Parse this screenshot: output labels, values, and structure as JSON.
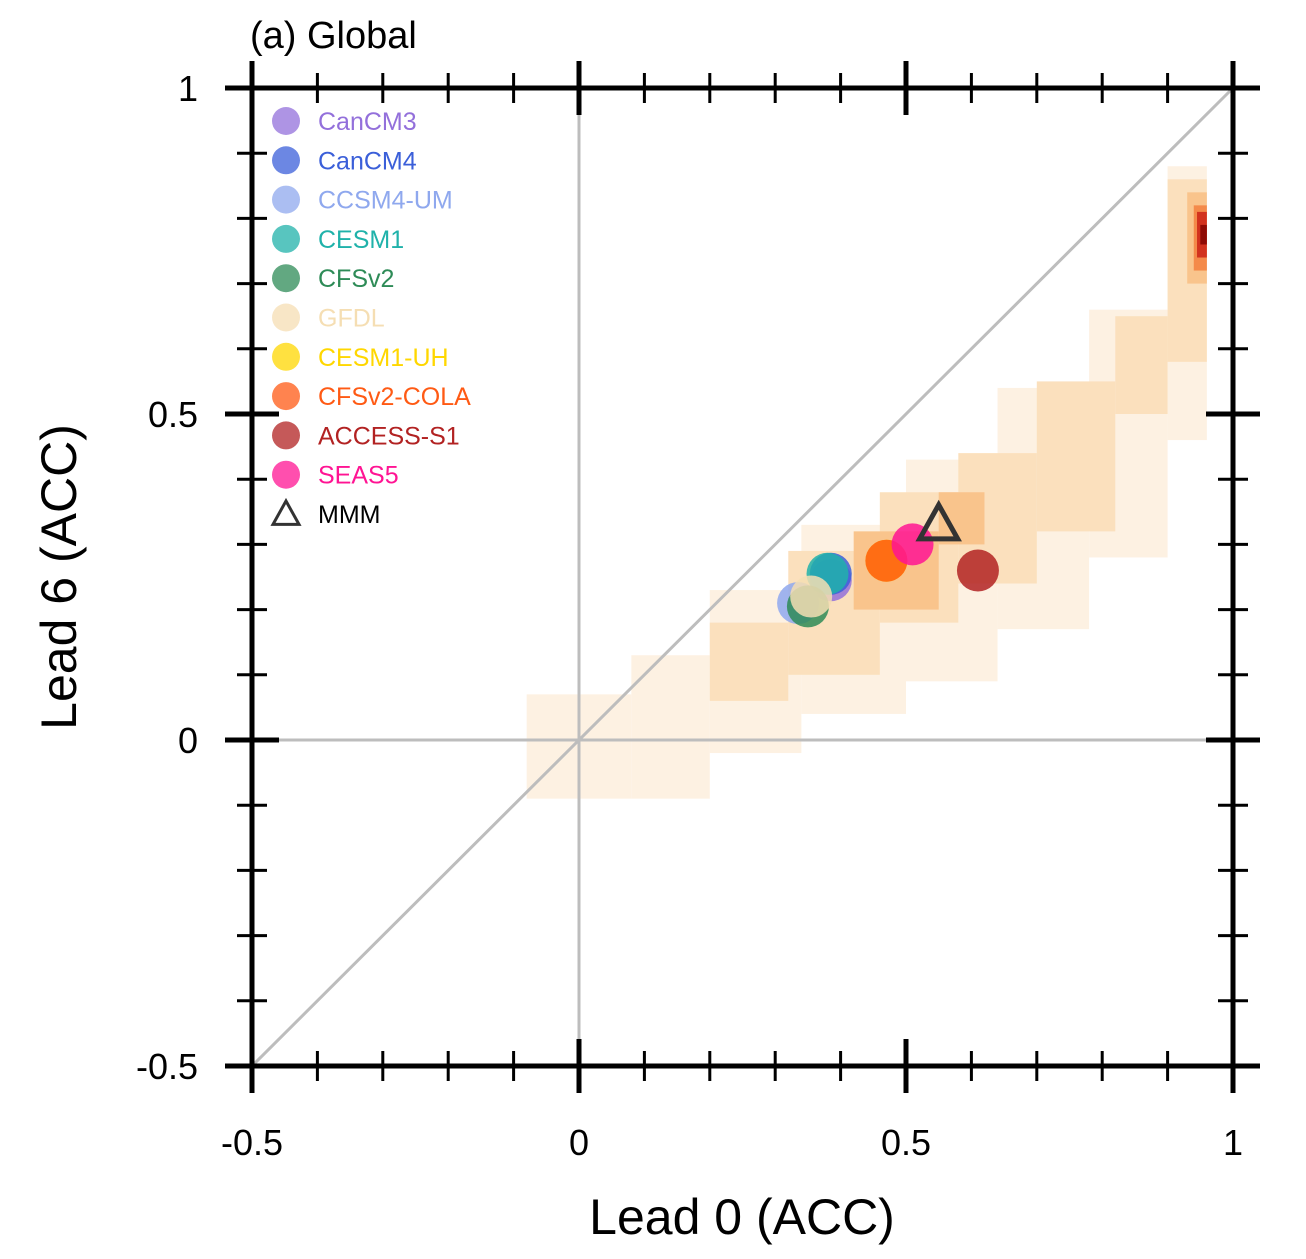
{
  "chart_data": {
    "type": "scatter",
    "title": "(a) Global",
    "xlabel": "Lead 0 (ACC)",
    "ylabel": "Lead 6 (ACC)",
    "xlim": [
      -0.5,
      1
    ],
    "ylim": [
      -0.5,
      1
    ],
    "x_ticks": [
      "-0.5",
      "0",
      "0.5",
      "1"
    ],
    "y_ticks": [
      "-0.5",
      "0",
      "0.5",
      "1"
    ],
    "reference_lines": [
      "x = 0",
      "y = 0",
      "y = x"
    ],
    "legend_position": "top-left",
    "series": [
      {
        "name": "CanCM3",
        "color": "#9370DB",
        "marker": "circle",
        "x": 0.385,
        "y": 0.245
      },
      {
        "name": "CanCM4",
        "color": "#3B5FD9",
        "marker": "circle",
        "x": 0.385,
        "y": 0.255
      },
      {
        "name": "CCSM4-UM",
        "color": "#8FA8EE",
        "marker": "circle",
        "x": 0.335,
        "y": 0.21
      },
      {
        "name": "CESM1",
        "color": "#20B2AA",
        "marker": "circle",
        "x": 0.38,
        "y": 0.255
      },
      {
        "name": "CFSv2",
        "color": "#2E8B57",
        "marker": "circle",
        "x": 0.35,
        "y": 0.205
      },
      {
        "name": "GFDL",
        "color": "#F5DEB3",
        "marker": "circle",
        "x": 0.355,
        "y": 0.22
      },
      {
        "name": "CESM1-UH",
        "color": "#FFD700",
        "marker": "circle",
        "x": 0.47,
        "y": 0.275
      },
      {
        "name": "CFSv2-COLA",
        "color": "#FF5A14",
        "marker": "circle",
        "x": 0.47,
        "y": 0.275
      },
      {
        "name": "ACCESS-S1",
        "color": "#B22222",
        "marker": "circle",
        "x": 0.61,
        "y": 0.26
      },
      {
        "name": "SEAS5",
        "color": "#FF1493",
        "marker": "circle",
        "x": 0.51,
        "y": 0.3
      },
      {
        "name": "MMM",
        "color": "#333333",
        "marker": "triangle",
        "x": 0.55,
        "y": 0.33
      }
    ],
    "density": {
      "description_colors": [
        "#fdf1e2",
        "#fbe0bd",
        "#f9c48c",
        "#f48a4a",
        "#d2321e",
        "#8f0b05"
      ],
      "bands": [
        {
          "x0": -0.08,
          "x1": 0.08,
          "ylo": -0.09,
          "yhi": 0.07,
          "level": 1
        },
        {
          "x0": 0.08,
          "x1": 0.2,
          "ylo": -0.09,
          "yhi": 0.13,
          "level": 1
        },
        {
          "x0": 0.2,
          "x1": 0.34,
          "ylo": -0.02,
          "yhi": 0.23,
          "level": 1
        },
        {
          "x0": 0.34,
          "x1": 0.5,
          "ylo": 0.04,
          "yhi": 0.33,
          "level": 1
        },
        {
          "x0": 0.5,
          "x1": 0.64,
          "ylo": 0.09,
          "yhi": 0.43,
          "level": 1
        },
        {
          "x0": 0.64,
          "x1": 0.78,
          "ylo": 0.17,
          "yhi": 0.54,
          "level": 1
        },
        {
          "x0": 0.78,
          "x1": 0.9,
          "ylo": 0.28,
          "yhi": 0.66,
          "level": 1
        },
        {
          "x0": 0.9,
          "x1": 0.96,
          "ylo": 0.46,
          "yhi": 0.88,
          "level": 1
        },
        {
          "x0": 0.2,
          "x1": 0.32,
          "ylo": 0.06,
          "yhi": 0.18,
          "level": 2
        },
        {
          "x0": 0.32,
          "x1": 0.46,
          "ylo": 0.1,
          "yhi": 0.29,
          "level": 2
        },
        {
          "x0": 0.46,
          "x1": 0.58,
          "ylo": 0.18,
          "yhi": 0.38,
          "level": 2
        },
        {
          "x0": 0.58,
          "x1": 0.7,
          "ylo": 0.24,
          "yhi": 0.44,
          "level": 2
        },
        {
          "x0": 0.7,
          "x1": 0.82,
          "ylo": 0.32,
          "yhi": 0.55,
          "level": 2
        },
        {
          "x0": 0.82,
          "x1": 0.9,
          "ylo": 0.5,
          "yhi": 0.65,
          "level": 2
        },
        {
          "x0": 0.9,
          "x1": 0.96,
          "ylo": 0.58,
          "yhi": 0.86,
          "level": 2
        },
        {
          "x0": 0.42,
          "x1": 0.55,
          "ylo": 0.2,
          "yhi": 0.32,
          "level": 3
        },
        {
          "x0": 0.55,
          "x1": 0.62,
          "ylo": 0.3,
          "yhi": 0.38,
          "level": 3
        },
        {
          "x0": 0.93,
          "x1": 0.96,
          "ylo": 0.7,
          "yhi": 0.84,
          "level": 3
        },
        {
          "x0": 0.94,
          "x1": 0.96,
          "ylo": 0.72,
          "yhi": 0.82,
          "level": 4
        },
        {
          "x0": 0.945,
          "x1": 0.96,
          "ylo": 0.74,
          "yhi": 0.81,
          "level": 5
        },
        {
          "x0": 0.95,
          "x1": 0.96,
          "ylo": 0.76,
          "yhi": 0.79,
          "level": 6
        }
      ]
    }
  }
}
